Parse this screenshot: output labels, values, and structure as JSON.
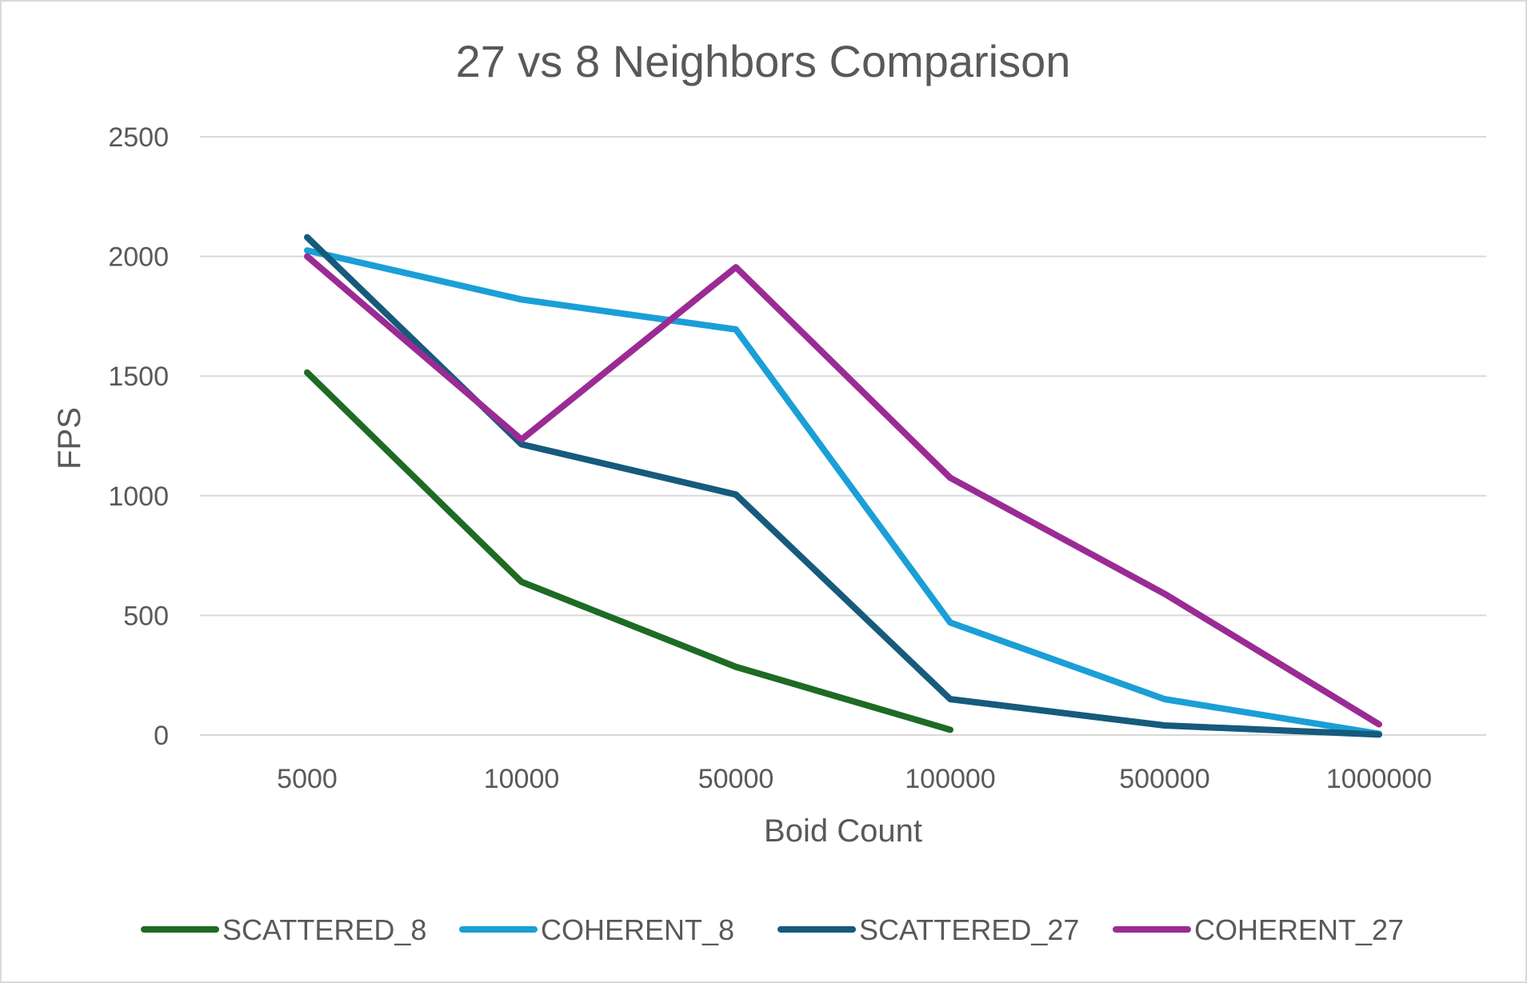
{
  "chart_data": {
    "type": "line",
    "title": "27 vs 8 Neighbors Comparison",
    "xlabel": "Boid Count",
    "ylabel": "FPS",
    "categories": [
      "5000",
      "10000",
      "50000",
      "100000",
      "500000",
      "1000000"
    ],
    "ylim": [
      0,
      2500
    ],
    "yticks": [
      "0",
      "500",
      "1000",
      "1500",
      "2000",
      "2500"
    ],
    "grid": "horizontal",
    "legend_position": "bottom",
    "series": [
      {
        "name": "SCATTERED_8",
        "color": "#1e6b24",
        "values": [
          1515,
          640,
          285,
          22,
          null,
          null
        ]
      },
      {
        "name": "COHERENT_8",
        "color": "#1a9fd6",
        "values": [
          2025,
          1820,
          1695,
          470,
          150,
          5
        ]
      },
      {
        "name": "SCATTERED_27",
        "color": "#165a7c",
        "values": [
          2080,
          1215,
          1005,
          150,
          40,
          2
        ]
      },
      {
        "name": "COHERENT_27",
        "color": "#9b2b94",
        "values": [
          2000,
          1235,
          1955,
          1075,
          590,
          45
        ]
      }
    ]
  }
}
